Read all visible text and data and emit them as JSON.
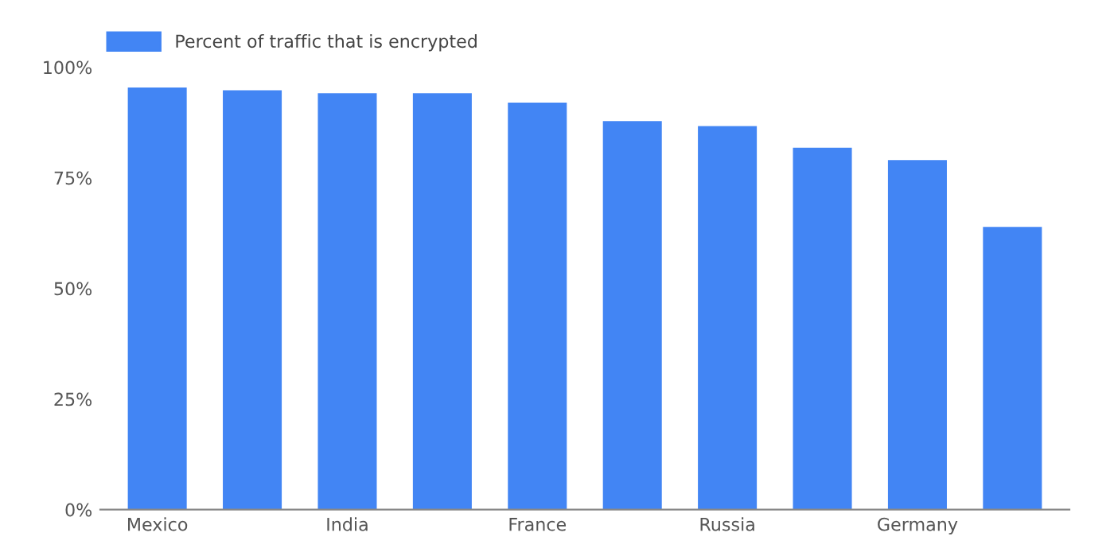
{
  "chart_data": {
    "type": "bar",
    "categories": [
      "Mexico",
      null,
      "India",
      null,
      "France",
      null,
      "Russia",
      null,
      "Germany",
      null
    ],
    "series": [
      {
        "name": "Percent of traffic that is encrypted",
        "color": "#4285f4",
        "values": [
          95.4,
          94.8,
          94.1,
          94.1,
          92.0,
          87.8,
          86.7,
          81.8,
          79.0,
          63.9
        ]
      }
    ],
    "ylim": [
      0,
      100
    ],
    "yticks": [
      {
        "value": 0,
        "label": "0%"
      },
      {
        "value": 25,
        "label": "25%"
      },
      {
        "value": 50,
        "label": "50%"
      },
      {
        "value": 75,
        "label": "75%"
      },
      {
        "value": 100,
        "label": "100%"
      }
    ],
    "grid": false,
    "legend": "top left"
  }
}
